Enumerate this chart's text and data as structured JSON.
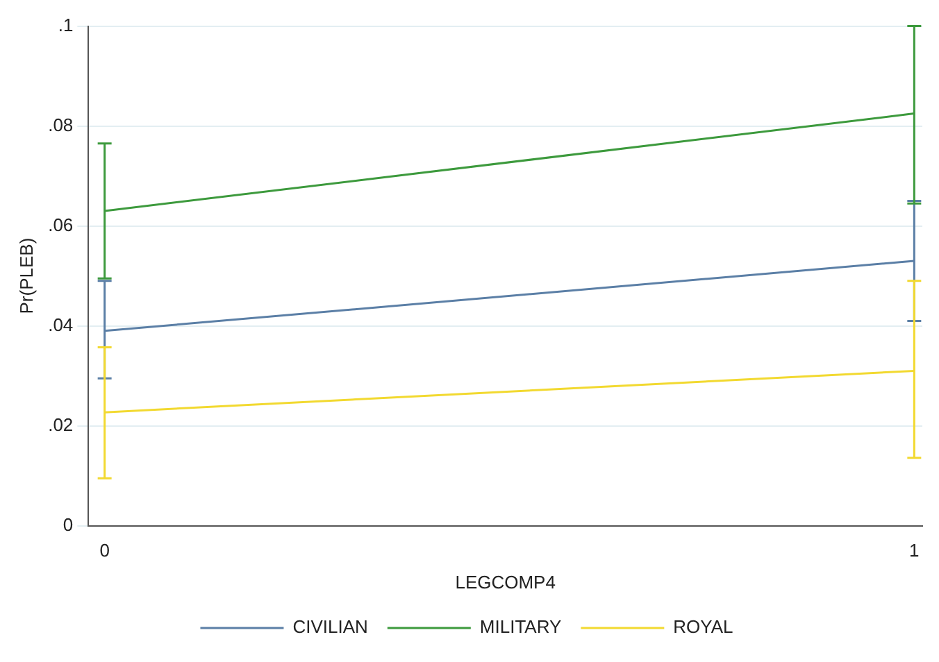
{
  "chart_data": {
    "type": "line",
    "xlabel": "LEGCOMP4",
    "ylabel": "Pr(PLEB)",
    "x": [
      0,
      1
    ],
    "xlim": [
      -0.02,
      1.01
    ],
    "xticks": [
      0,
      1
    ],
    "ylim": [
      0,
      0.1
    ],
    "yticks": [
      {
        "value": 0,
        "label": "0"
      },
      {
        "value": 0.02,
        "label": ".02"
      },
      {
        "value": 0.04,
        "label": ".04"
      },
      {
        "value": 0.06,
        "label": ".06"
      },
      {
        "value": 0.08,
        "label": ".08"
      },
      {
        "value": 0.1,
        "label": ".1"
      }
    ],
    "grid": "y",
    "legend": "bottom",
    "marker": "none",
    "line_style": "solid",
    "series": [
      {
        "name": "CIVILIAN",
        "color": "#5b7fa6",
        "values": [
          0.039,
          0.053
        ],
        "errors": [
          [
            0.0295,
            0.049
          ],
          [
            0.041,
            0.065
          ]
        ]
      },
      {
        "name": "MILITARY",
        "color": "#3d9a3d",
        "values": [
          0.063,
          0.0825
        ],
        "errors": [
          [
            0.0495,
            0.0765
          ],
          [
            0.0645,
            0.1
          ]
        ]
      },
      {
        "name": "ROYAL",
        "color": "#f2d930",
        "values": [
          0.0227,
          0.031
        ],
        "errors": [
          [
            0.0095,
            0.0357
          ],
          [
            0.0136,
            0.049
          ]
        ]
      }
    ]
  }
}
